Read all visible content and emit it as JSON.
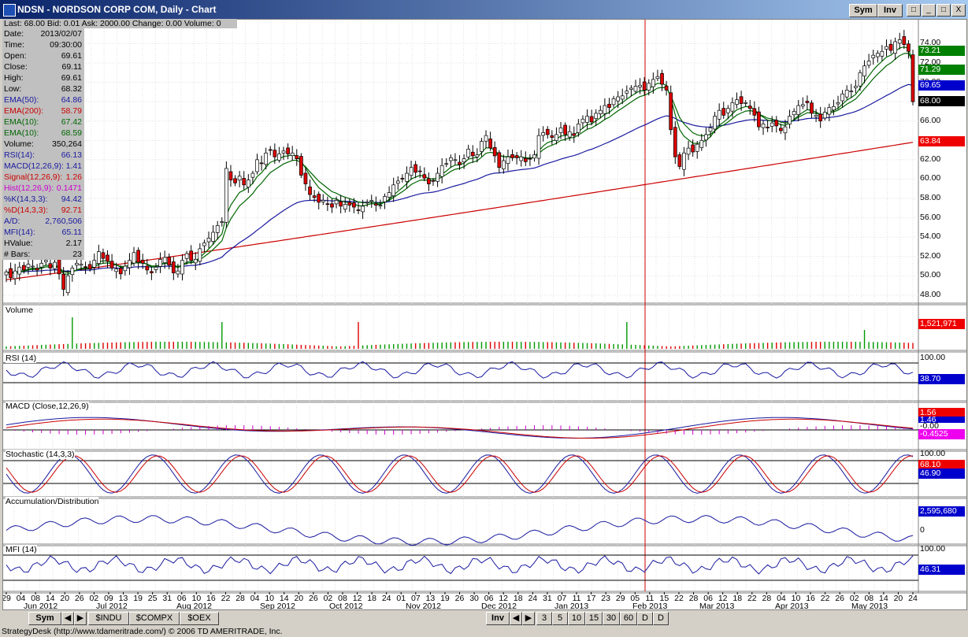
{
  "window": {
    "title": "NDSN - NORDSON CORP COM, Daily - Chart",
    "sym_btn": "Sym",
    "inv_btn": "Inv",
    "btn_a": "□",
    "btn_b": "?",
    "btn_min": "_",
    "btn_max": "□",
    "btn_close": "X"
  },
  "quote_bar": "Last: 68.00  Bid: 0.01  Ask: 2000.00  Change: 0.00  Volume: 0",
  "info_rows": [
    {
      "label": "Date:",
      "value": "2013/02/07",
      "color": "#000000"
    },
    {
      "label": "Time:",
      "value": "09:30:00",
      "color": "#000000"
    },
    {
      "label": "Open:",
      "value": "69.61",
      "color": "#000000"
    },
    {
      "label": "Close:",
      "value": "69.11",
      "color": "#000000"
    },
    {
      "label": "High:",
      "value": "69.61",
      "color": "#000000"
    },
    {
      "label": "Low:",
      "value": "68.32",
      "color": "#000000"
    },
    {
      "label": "EMA(50):",
      "value": "64.86",
      "color": "#1a1aa0"
    },
    {
      "label": "EMA(200):",
      "value": "58.79",
      "color": "#cc0000"
    },
    {
      "label": "EMA(10):",
      "value": "67.42",
      "color": "#006600"
    },
    {
      "label": "EMA(10):",
      "value": "68.59",
      "color": "#006600"
    },
    {
      "label": "Volume:",
      "value": "350,264",
      "color": "#000000"
    },
    {
      "label": "RSI(14):",
      "value": "66.13",
      "color": "#1a1aa0"
    },
    {
      "label": "MACD(12,26,9):",
      "value": "1.41",
      "color": "#1a1aa0"
    },
    {
      "label": "Signal(12,26,9):",
      "value": "1.26",
      "color": "#cc0000"
    },
    {
      "label": "Hist(12,26,9):",
      "value": "0.1471",
      "color": "#cc00cc"
    },
    {
      "label": "%K(14,3,3):",
      "value": "94.42",
      "color": "#1a1aa0"
    },
    {
      "label": "%D(14,3,3):",
      "value": "92.71",
      "color": "#cc0000"
    },
    {
      "label": "A/D:",
      "value": "2,760,506",
      "color": "#1a1aa0"
    },
    {
      "label": "MFI(14):",
      "value": "65.11",
      "color": "#1a1aa0"
    },
    {
      "label": "HValue:",
      "value": "2.17",
      "color": "#000000"
    },
    {
      "label": "# Bars:",
      "value": "23",
      "color": "#000000"
    }
  ],
  "price_axis": [
    "74.00",
    "72.00",
    "70.00",
    "68.00",
    "66.00",
    "64.00",
    "62.00",
    "60.00",
    "58.00",
    "56.00",
    "54.00",
    "52.00",
    "50.00",
    "48.00"
  ],
  "price_tags": [
    {
      "value": "73.21",
      "bg": "#008000",
      "fg": "#ffffff"
    },
    {
      "value": "71.29",
      "bg": "#008000",
      "fg": "#ffffff"
    },
    {
      "value": "69.65",
      "bg": "#0000cc",
      "fg": "#ffffff"
    },
    {
      "value": "68.00",
      "bg": "#000000",
      "fg": "#ffffff"
    },
    {
      "value": "63.84",
      "bg": "#ee0000",
      "fg": "#ffffff"
    }
  ],
  "panels": {
    "volume": {
      "label": "Volume",
      "tag": "1,521,971"
    },
    "rsi": {
      "label": "RSI (14)",
      "top": "100.00",
      "tag": "38.70"
    },
    "macd": {
      "label": "MACD (Close,12,26,9)",
      "tag1": "1.56",
      "tag2": "1.46",
      "tag3": "-0.00",
      "tag4": "-0.4525"
    },
    "stoch": {
      "label": "Stochastic (14,3,3)",
      "top": "100.00",
      "tag1": "68.10",
      "tag2": "46.90"
    },
    "ad": {
      "label": "Accumulation/Distribution",
      "tag": "2,595,680",
      "zero": "0"
    },
    "mfi": {
      "label": "MFI (14)",
      "top": "100.00",
      "tag": "46.31"
    }
  },
  "date_days": [
    "29",
    "04",
    "08",
    "14",
    "20",
    "26",
    "02",
    "09",
    "13",
    "19",
    "25",
    "31",
    "06",
    "10",
    "16",
    "22",
    "28",
    "04",
    "10",
    "14",
    "20",
    "26",
    "02",
    "08",
    "12",
    "18",
    "24",
    "01",
    "07",
    "13",
    "19",
    "26",
    "30",
    "06",
    "12",
    "18",
    "24",
    "31",
    "07",
    "11",
    "17",
    "23",
    "29",
    "05",
    "11",
    "15",
    "22",
    "28",
    "06",
    "12",
    "18",
    "22",
    "28",
    "04",
    "10",
    "16",
    "22",
    "26",
    "02",
    "08",
    "14",
    "20",
    "24"
  ],
  "date_months": [
    "Jun 2012",
    "Jul 2012",
    "Aug 2012",
    "Sep 2012",
    "Oct 2012",
    "Nov 2012",
    "Dec 2012",
    "Jan 2013",
    "Feb 2013",
    "Mar 2013",
    "Apr 2013",
    "May 2013"
  ],
  "bottom": {
    "sym_tab": "Sym",
    "tabs": [
      "$INDU",
      "$COMPX",
      "$OEX"
    ],
    "inv_tab": "Inv",
    "periods": [
      "3",
      "5",
      "10",
      "15",
      "30",
      "60",
      "D",
      "D"
    ]
  },
  "status_text": "StrategyDesk (http://www.tdameritrade.com/) © 2006 TD AMERITRADE, Inc.",
  "chart_data": {
    "type": "candlestick",
    "title": "NDSN - NORDSON CORP COM, Daily - Chart",
    "ylim": [
      47.5,
      75.5
    ],
    "close": [
      50.4,
      49.8,
      50.5,
      50.9,
      50.6,
      51.2,
      51.0,
      50.6,
      51.3,
      51.6,
      50.8,
      51.4,
      50.2,
      48.6,
      50.0,
      50.8,
      51.3,
      51.2,
      50.9,
      50.7,
      51.6,
      52.5,
      51.8,
      51.5,
      50.8,
      50.7,
      50.2,
      51.0,
      51.6,
      52.4,
      51.4,
      51.3,
      50.6,
      50.3,
      50.9,
      51.7,
      51.9,
      51.1,
      50.3,
      50.5,
      51.6,
      52.3,
      51.6,
      51.7,
      52.8,
      53.4,
      53.9,
      54.5,
      55.2,
      55.6,
      61.1,
      59.9,
      59.6,
      60.3,
      59.4,
      59.9,
      60.6,
      62.0,
      61.6,
      62.7,
      63.0,
      62.3,
      62.6,
      62.9,
      62.6,
      62.7,
      62.1,
      60.4,
      59.5,
      58.4,
      58.1,
      57.6,
      57.8,
      57.4,
      57.1,
      57.8,
      57.2,
      57.4,
      57.3,
      57.1,
      56.8,
      57.2,
      57.6,
      57.8,
      57.3,
      57.3,
      58.2,
      58.6,
      59.4,
      59.8,
      60.0,
      60.6,
      61.2,
      60.7,
      60.8,
      60.1,
      59.5,
      59.8,
      60.6,
      61.4,
      61.6,
      62.2,
      62.0,
      61.5,
      62.1,
      63.1,
      62.4,
      62.5,
      63.9,
      64.5,
      63.2,
      62.4,
      61.2,
      61.9,
      62.3,
      62.2,
      62.2,
      62.3,
      61.8,
      62.1,
      62.5,
      64.5,
      64.8,
      64.6,
      64.3,
      64.6,
      65.3,
      64.6,
      64.9,
      64.5,
      65.7,
      66.2,
      66.5,
      65.9,
      66.8,
      67.1,
      67.6,
      67.4,
      68.3,
      68.5,
      68.6,
      69.1,
      69.4,
      69.6,
      69.7,
      69.2,
      69.9,
      70.3,
      70.6,
      69.8,
      69.2,
      65.1,
      62.3,
      61.3,
      62.7,
      63.2,
      62.8,
      63.6,
      64.0,
      64.6,
      65.3,
      66.5,
      67.1,
      66.6,
      67.3,
      67.9,
      68.2,
      67.8,
      67.9,
      67.3,
      66.6,
      65.4,
      65.7,
      65.3,
      65.8,
      65.5,
      65.0,
      65.4,
      66.5,
      67.0,
      67.6,
      67.7,
      67.9,
      66.8,
      66.6,
      66.0,
      66.9,
      67.4,
      67.5,
      67.9,
      68.8,
      69.2,
      69.1,
      69.6,
      71.0,
      71.7,
      72.2,
      72.8,
      73.0,
      73.2,
      73.7,
      73.3,
      74.2,
      74.4,
      73.9,
      73.2,
      68.0
    ],
    "series": [
      {
        "name": "EMA(50)",
        "color": "#1a1aa0"
      },
      {
        "name": "EMA(200)",
        "color": "#cc0000"
      },
      {
        "name": "EMA(10)",
        "color": "#006600"
      },
      {
        "name": "EMA(10)",
        "color": "#006600"
      }
    ]
  }
}
